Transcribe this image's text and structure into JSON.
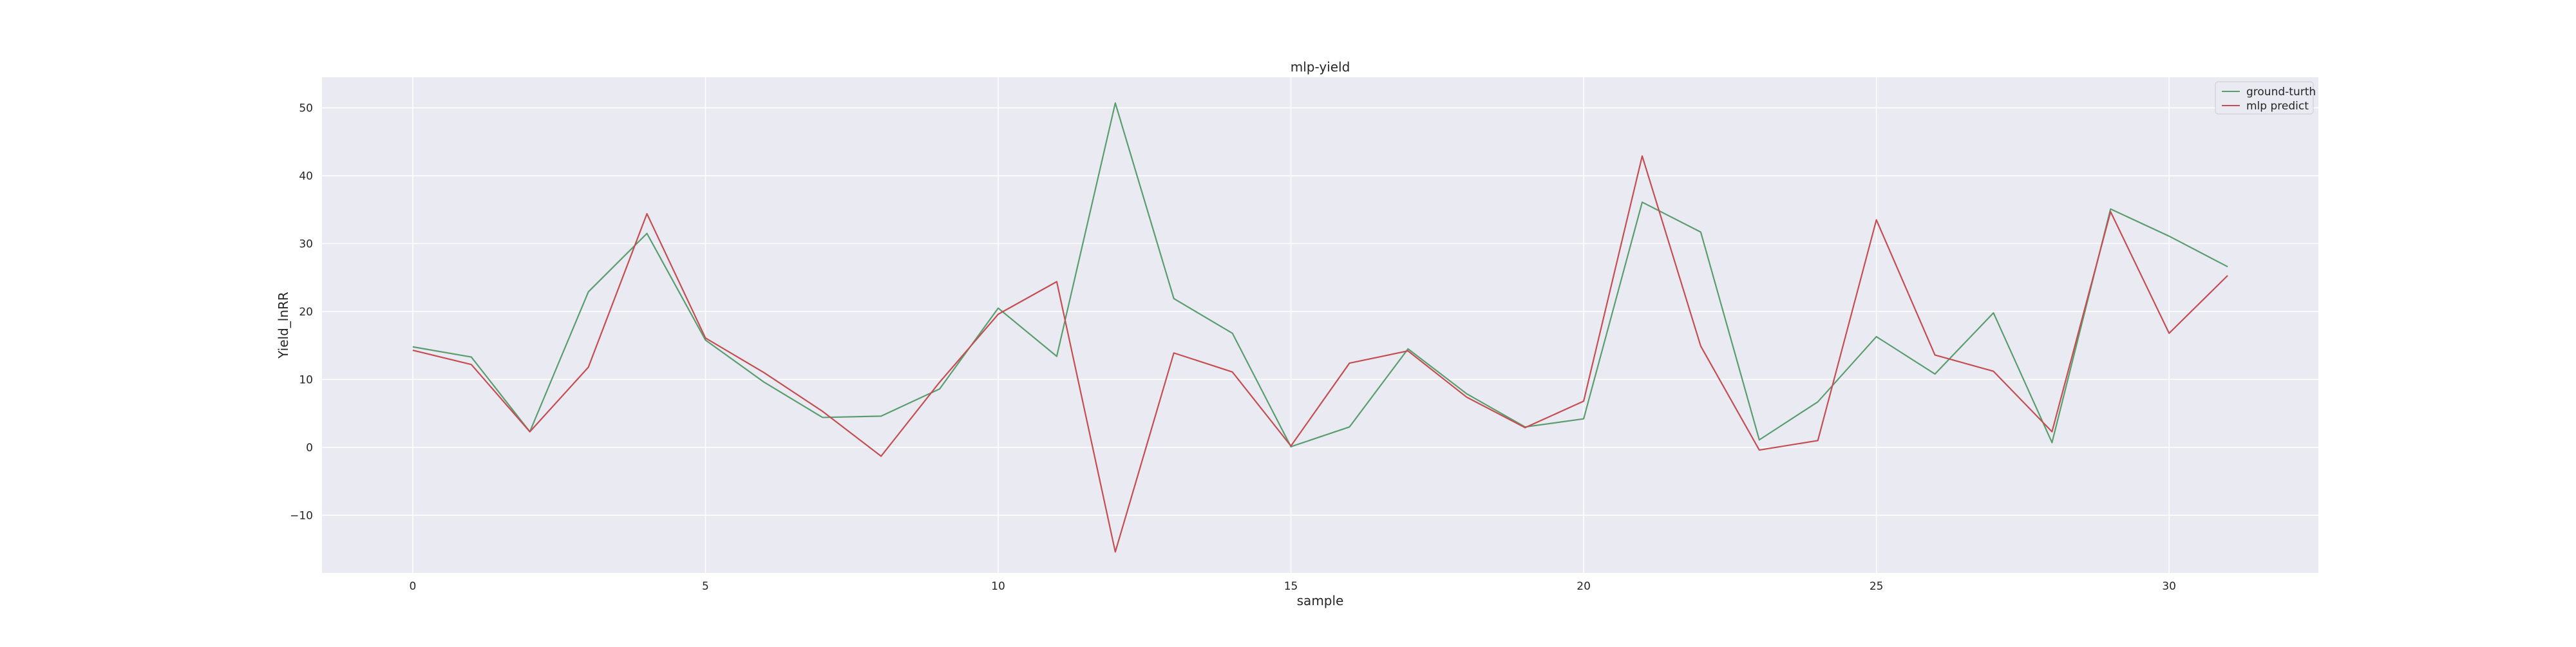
{
  "chart_data": {
    "type": "line",
    "title": "mlp-yield",
    "xlabel": "sample",
    "ylabel": "Yield_lnRR",
    "xlim": [
      -1.55,
      32.55
    ],
    "ylim": [
      -18.5,
      54.5
    ],
    "xticks": [
      0,
      5,
      10,
      15,
      20,
      25,
      30
    ],
    "yticks": [
      -10,
      0,
      10,
      20,
      30,
      40,
      50
    ],
    "xtick_labels": [
      "0",
      "5",
      "10",
      "15",
      "20",
      "25",
      "30"
    ],
    "ytick_labels": [
      "−10",
      "0",
      "10",
      "20",
      "30",
      "40",
      "50"
    ],
    "grid": true,
    "legend_position": "top-right",
    "x": [
      0,
      1,
      2,
      3,
      4,
      5,
      6,
      7,
      8,
      9,
      10,
      11,
      12,
      13,
      14,
      15,
      16,
      17,
      18,
      19,
      20,
      21,
      22,
      23,
      24,
      25,
      26,
      27,
      28,
      29,
      30,
      31
    ],
    "series": [
      {
        "name": "ground-turth",
        "color": "#5a9e6f",
        "values": [
          14.8,
          13.3,
          2.3,
          22.9,
          31.5,
          15.8,
          9.6,
          4.4,
          4.6,
          8.6,
          20.5,
          13.4,
          50.7,
          21.9,
          16.8,
          0.1,
          3.0,
          14.5,
          7.9,
          3.0,
          4.2,
          36.1,
          31.7,
          1.1,
          6.7,
          16.3,
          10.8,
          19.8,
          0.7,
          35.1,
          31.1,
          26.6
        ]
      },
      {
        "name": "mlp predict",
        "color": "#c44e52",
        "values": [
          14.3,
          12.2,
          2.3,
          11.8,
          34.4,
          16.1,
          11.0,
          5.3,
          -1.3,
          9.6,
          19.6,
          24.4,
          -15.4,
          13.9,
          11.1,
          0.2,
          12.4,
          14.2,
          7.4,
          2.9,
          6.8,
          42.9,
          14.9,
          -0.4,
          1.0,
          33.5,
          13.6,
          11.2,
          2.3,
          34.7,
          16.8,
          25.3
        ]
      }
    ],
    "colors": {
      "plot_background": "#eaeaf2",
      "grid": "#ffffff"
    }
  }
}
